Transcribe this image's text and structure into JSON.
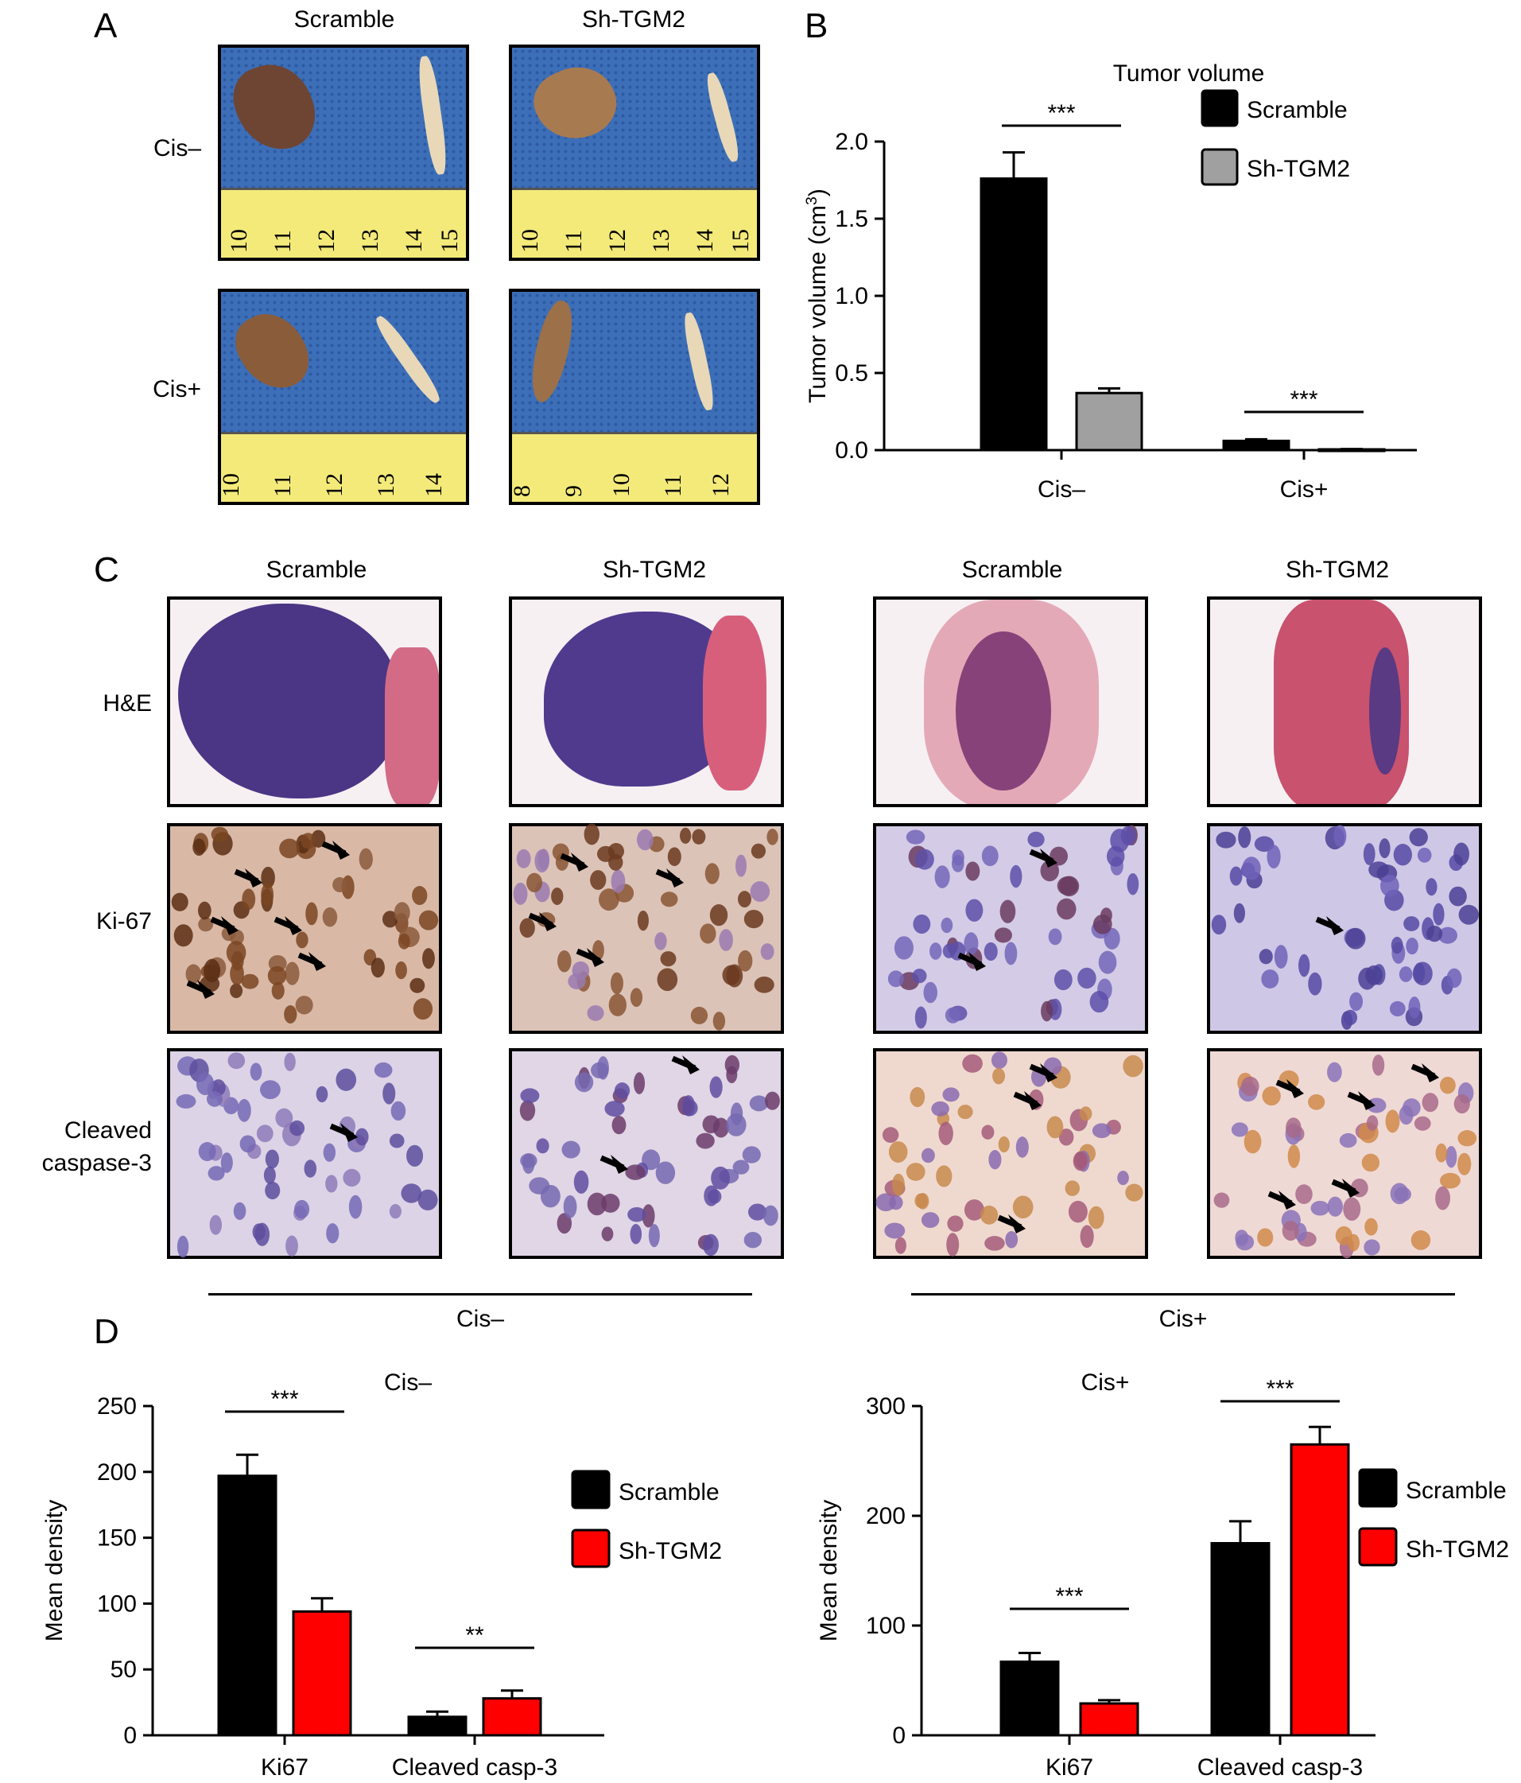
{
  "panels": {
    "A": {
      "letter": "A",
      "col_labels": [
        "Scramble",
        "Sh-TGM2"
      ],
      "row_labels": [
        "Cis–",
        "Cis+"
      ],
      "rulers": [
        [
          "10",
          "11",
          "12",
          "13",
          "14",
          "15"
        ],
        [
          "10",
          "11",
          "12",
          "13",
          "14",
          "15"
        ],
        [
          "10",
          "11",
          "12",
          "13",
          "14"
        ],
        [
          "8",
          "9",
          "10",
          "11",
          "12"
        ]
      ]
    },
    "B": {
      "letter": "B"
    },
    "C": {
      "letter": "C",
      "col_labels": [
        "Scramble",
        "Sh-TGM2",
        "Scramble",
        "Sh-TGM2"
      ],
      "row_labels": [
        "H&E",
        "Ki-67",
        "Cleaved",
        "caspase-3"
      ],
      "group_labels": [
        "Cis–",
        "Cis+"
      ]
    },
    "D": {
      "letter": "D"
    }
  },
  "colors": {
    "scramble": "#000000",
    "sh_tgm2_B": "#a0a0a0",
    "sh_tgm2_D": "#ff0000"
  },
  "chart_data": [
    {
      "id": "B",
      "type": "bar",
      "title": "Tumor volume",
      "ylabel": "Tumor volume (cm³)",
      "categories": [
        "Cis–",
        "Cis+"
      ],
      "ylim": [
        0,
        2.0
      ],
      "yticks": [
        "0.0",
        "0.5",
        "1.0",
        "1.5",
        "2.0"
      ],
      "series": [
        {
          "name": "Scramble",
          "values": [
            1.76,
            0.06
          ],
          "errors": [
            0.17,
            0.01
          ],
          "color": "#000000"
        },
        {
          "name": "Sh-TGM2",
          "values": [
            0.37,
            0.005
          ],
          "errors": [
            0.03,
            0.002
          ],
          "color": "#a0a0a0"
        }
      ],
      "significance": [
        "***",
        "***"
      ],
      "legend": "top-right"
    },
    {
      "id": "D1",
      "type": "bar",
      "title": "Cis–",
      "ylabel": "Mean density",
      "categories": [
        "Ki67",
        "Cleaved casp-3"
      ],
      "ylim": [
        0,
        250
      ],
      "yticks": [
        "0",
        "50",
        "100",
        "150",
        "200",
        "250"
      ],
      "series": [
        {
          "name": "Scramble",
          "values": [
            197,
            14
          ],
          "errors": [
            16,
            4
          ],
          "color": "#000000"
        },
        {
          "name": "Sh-TGM2",
          "values": [
            94,
            28
          ],
          "errors": [
            10,
            6
          ],
          "color": "#ff0000"
        }
      ],
      "significance": [
        "***",
        "**"
      ],
      "legend": "right"
    },
    {
      "id": "D2",
      "type": "bar",
      "title": "Cis+",
      "ylabel": "Mean density",
      "categories": [
        "Ki67",
        "Cleaved casp-3"
      ],
      "ylim": [
        0,
        300
      ],
      "yticks": [
        "0",
        "100",
        "200",
        "300"
      ],
      "series": [
        {
          "name": "Scramble",
          "values": [
            67,
            175
          ],
          "errors": [
            8,
            20
          ],
          "color": "#000000"
        },
        {
          "name": "Sh-TGM2",
          "values": [
            29,
            265
          ],
          "errors": [
            3,
            16
          ],
          "color": "#ff0000"
        }
      ],
      "significance": [
        "***",
        "***"
      ],
      "legend": "right"
    }
  ]
}
